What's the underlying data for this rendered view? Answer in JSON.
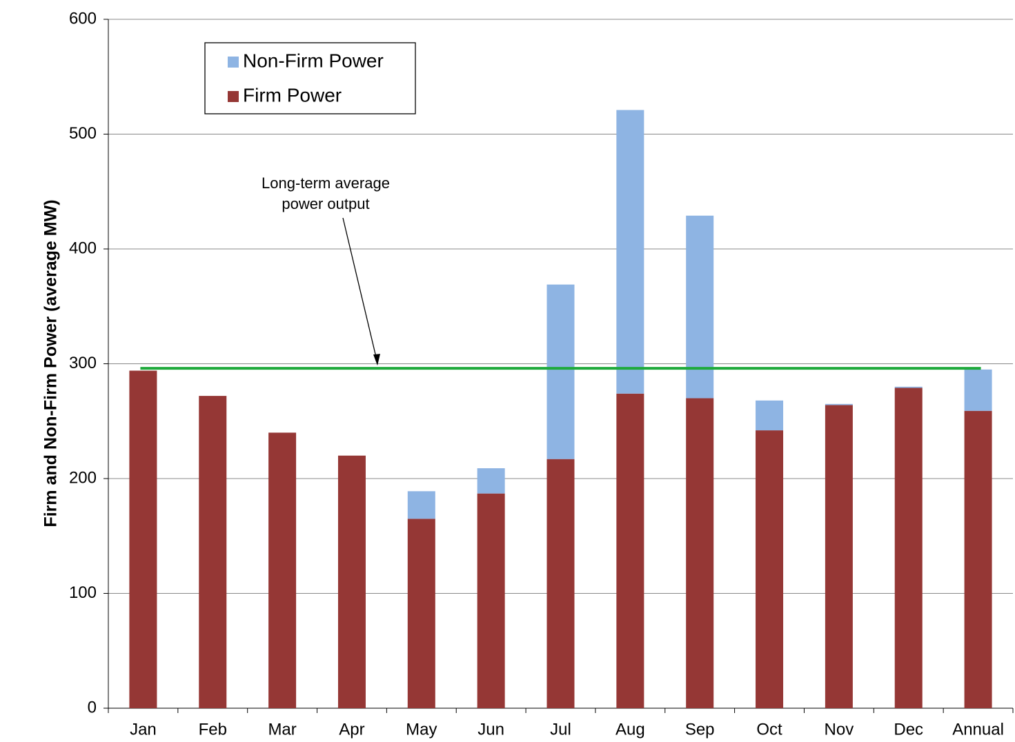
{
  "chart_data": {
    "type": "stacked_bar",
    "y_label": "Firm and Non-Firm Power (average MW)",
    "categories": [
      "Jan",
      "Feb",
      "Mar",
      "Apr",
      "May",
      "Jun",
      "Jul",
      "Aug",
      "Sep",
      "Oct",
      "Nov",
      "Dec",
      "Annual"
    ],
    "series": [
      {
        "name": "Firm Power",
        "color": "#953735",
        "values": [
          294,
          272,
          240,
          220,
          165,
          187,
          217,
          274,
          270,
          242,
          264,
          279,
          259
        ]
      },
      {
        "name": "Non-Firm Power",
        "color": "#8eb4e3",
        "values": [
          0,
          0,
          0,
          0,
          24,
          22,
          152,
          247,
          159,
          26,
          1,
          1,
          36
        ]
      }
    ],
    "reference_line": {
      "value": 296,
      "color": "#1faa3c",
      "label": [
        "Long-term average",
        "power output"
      ]
    },
    "ylim": [
      0,
      600
    ],
    "yticks": [
      0,
      100,
      200,
      300,
      400,
      500,
      600
    ],
    "grid": true,
    "legend": "upper left"
  }
}
